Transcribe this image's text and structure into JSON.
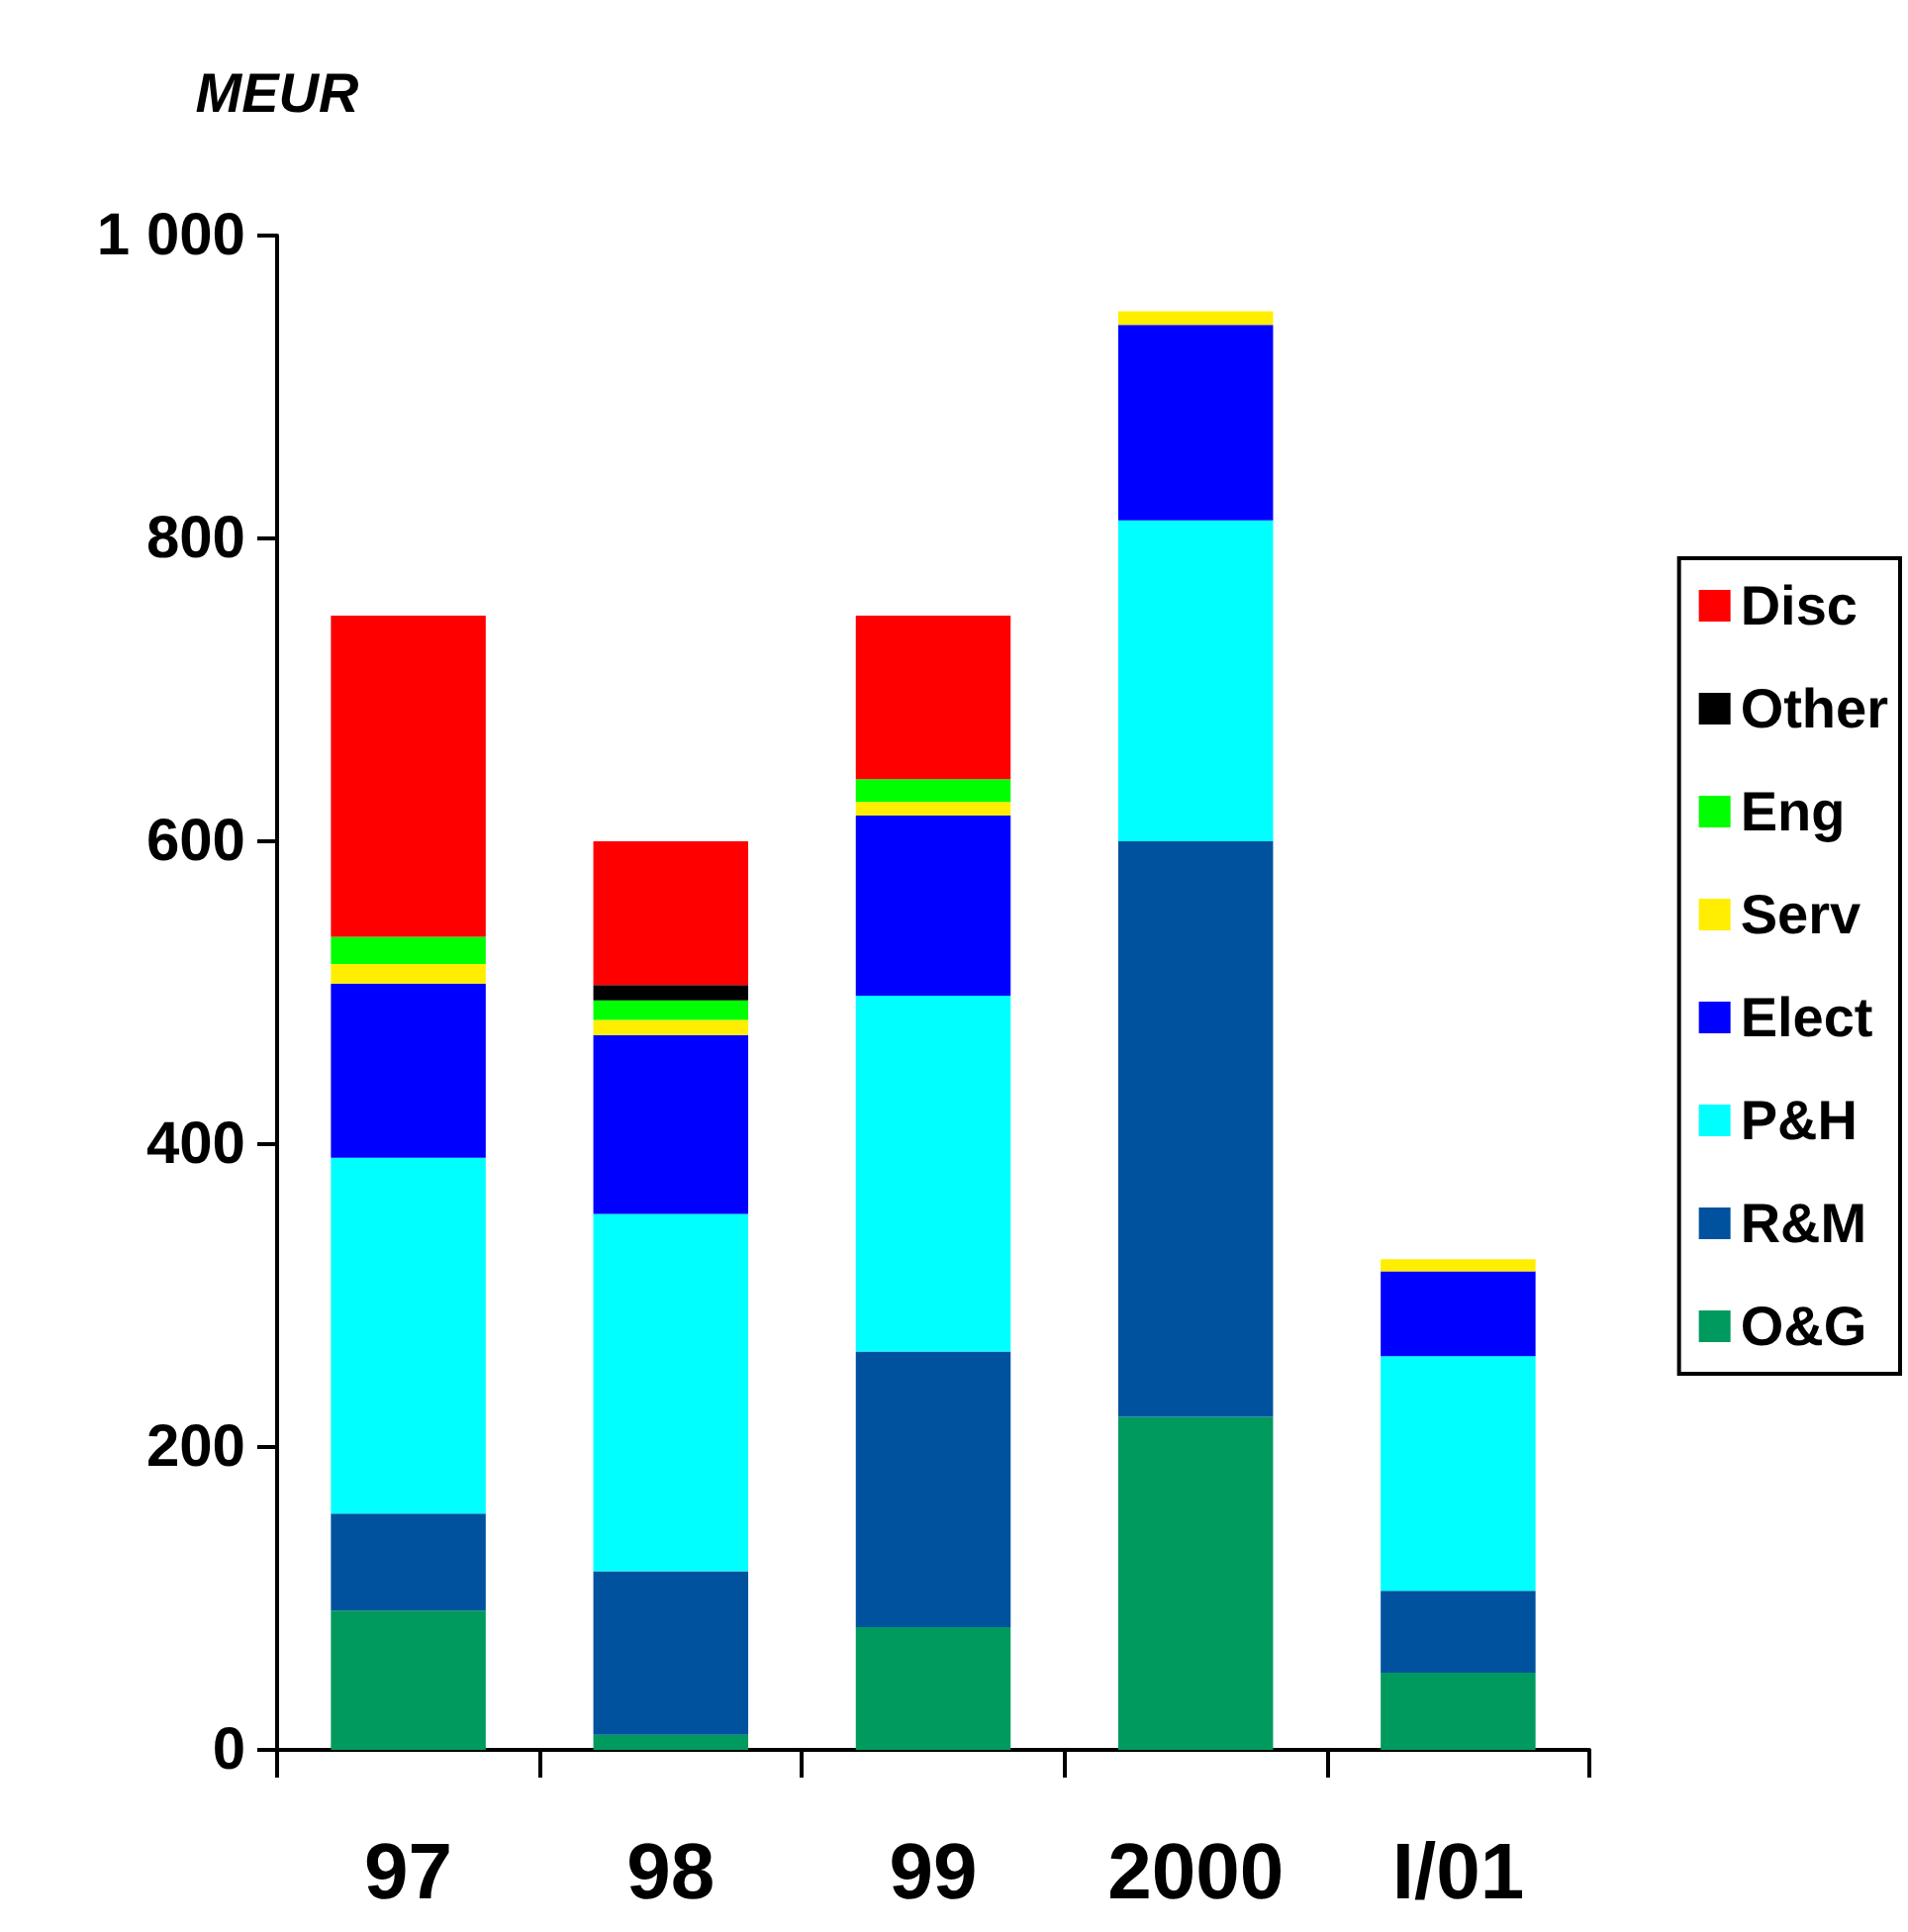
{
  "chart_data": {
    "type": "bar",
    "stacked": true,
    "ylabel": "MEUR",
    "categories": [
      "97",
      "98",
      "99",
      "2000",
      "I/01"
    ],
    "series": [
      {
        "name": "O&G",
        "color": "#009a5e",
        "values": [
          92,
          10,
          81,
          220,
          51
        ]
      },
      {
        "name": "R&M",
        "color": "#00529f",
        "values": [
          64,
          108,
          182,
          380,
          54
        ]
      },
      {
        "name": "P&H",
        "color": "#00ffff",
        "values": [
          235,
          236,
          235,
          212,
          155
        ]
      },
      {
        "name": "Elect",
        "color": "#0000ff",
        "values": [
          115,
          118,
          119,
          129,
          56
        ]
      },
      {
        "name": "Serv",
        "color": "#ffee00",
        "values": [
          13,
          10,
          9,
          9,
          8
        ]
      },
      {
        "name": "Eng",
        "color": "#00ff00",
        "values": [
          18,
          13,
          15,
          null,
          null
        ]
      },
      {
        "name": "Other",
        "color": "#000000",
        "values": [
          null,
          10,
          null,
          null,
          null
        ]
      },
      {
        "name": "Disc",
        "color": "#ff0000",
        "values": [
          212,
          95,
          108,
          null,
          null
        ]
      }
    ],
    "ylim": [
      0,
      1000
    ],
    "yticks": [
      0,
      200,
      400,
      600,
      800,
      {
        "value": 1000,
        "label": "1 000"
      }
    ],
    "grid": false,
    "legend": "right"
  }
}
